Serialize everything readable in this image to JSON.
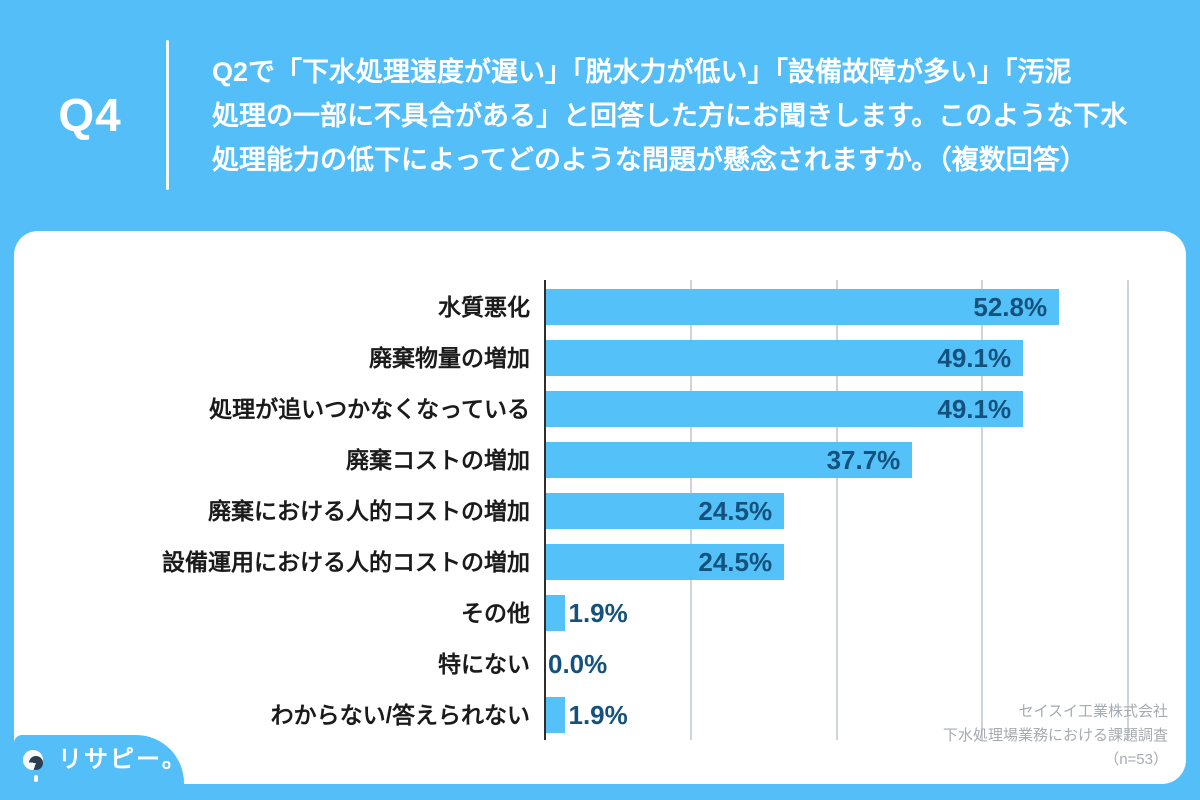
{
  "header": {
    "q_label": "Q4",
    "question_lines": [
      "Q2で「下水処理速度が遅い」「脱水力が低い」「設備故障が多い」「汚泥",
      "処理の一部に不具合がある」と回答した方にお聞きします。このような下水",
      "処理能力の低下によってどのような問題が懸念されますか。（複数回答）"
    ]
  },
  "chart_data": {
    "type": "bar",
    "orientation": "horizontal",
    "title": "",
    "xlabel": "",
    "ylabel": "",
    "categories": [
      "水質悪化",
      "廃棄物量の増加",
      "処理が追いつかなくなっている",
      "廃棄コストの増加",
      "廃棄における人的コストの増加",
      "設備運用における人的コストの増加",
      "その他",
      "特にない",
      "わからない/答えられない"
    ],
    "values": [
      52.8,
      49.1,
      49.1,
      37.7,
      24.5,
      24.5,
      1.9,
      0.0,
      1.9
    ],
    "value_labels": [
      "52.8%",
      "49.1%",
      "49.1%",
      "37.7%",
      "24.5%",
      "24.5%",
      "1.9%",
      "0.0%",
      "1.9%"
    ],
    "xlim": [
      0,
      64
    ],
    "gridlines_pct": [
      15,
      30,
      45,
      60
    ],
    "grid": true,
    "legend": "none",
    "bar_color": "#55C1F9",
    "value_text_color": "#14527D"
  },
  "footer": {
    "source_lines": [
      "セイスイ工業株式会社",
      "下水処理場業務における課題調査",
      "（n=53）"
    ],
    "logo_text": "リサピー。"
  },
  "colors": {
    "background": "#54BEF9",
    "card": "#ffffff",
    "header_text": "#ffffff",
    "category_text": "#1b1b1b",
    "gridline": "#cfd4d8",
    "axis": "#2e2e2e",
    "source_text": "#a5abb0"
  }
}
